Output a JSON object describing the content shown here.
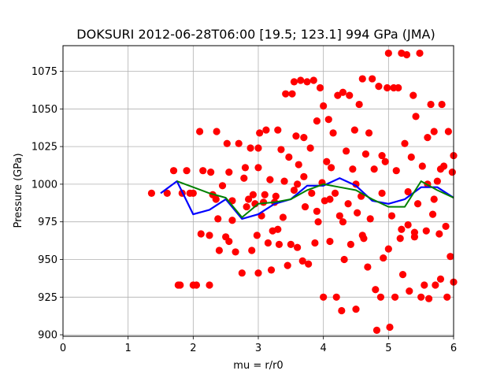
{
  "chart_data": {
    "type": "scatter",
    "title": "DOKSURI 2012-06-28T06:00 [19.5; 123.1] 994 GPa (JMA)",
    "xlabel": "mu = r/r0",
    "ylabel": "Pressure (GPa)",
    "xlim": [
      0,
      6
    ],
    "ylim": [
      899,
      1092
    ],
    "xticks": [
      0,
      1,
      2,
      3,
      4,
      5,
      6
    ],
    "yticks": [
      900,
      925,
      950,
      975,
      1000,
      1025,
      1050,
      1075
    ],
    "grid": true,
    "colors": {
      "points": "#ff0000",
      "blue_line": "#0000ff",
      "green_line": "#008000"
    },
    "point_series": {
      "name": "",
      "points": [
        [
          1.36,
          994
        ],
        [
          1.6,
          994
        ],
        [
          1.7,
          1009
        ],
        [
          1.77,
          933
        ],
        [
          1.8,
          933
        ],
        [
          1.83,
          994
        ],
        [
          1.9,
          1009
        ],
        [
          1.95,
          994
        ],
        [
          2.0,
          994
        ],
        [
          2.0,
          933
        ],
        [
          2.05,
          933
        ],
        [
          2.1,
          1035
        ],
        [
          2.12,
          967
        ],
        [
          2.15,
          1009
        ],
        [
          2.25,
          933
        ],
        [
          2.25,
          966
        ],
        [
          2.27,
          1008
        ],
        [
          2.3,
          993
        ],
        [
          2.35,
          990
        ],
        [
          2.36,
          1035
        ],
        [
          2.38,
          977
        ],
        [
          2.4,
          956
        ],
        [
          2.45,
          999
        ],
        [
          2.5,
          965
        ],
        [
          2.52,
          1027
        ],
        [
          2.55,
          1008
        ],
        [
          2.55,
          962
        ],
        [
          2.6,
          976
        ],
        [
          2.6,
          989
        ],
        [
          2.65,
          955
        ],
        [
          2.7,
          1027
        ],
        [
          2.75,
          941
        ],
        [
          2.78,
          1004
        ],
        [
          2.8,
          1011
        ],
        [
          2.82,
          985
        ],
        [
          2.85,
          990
        ],
        [
          2.88,
          1024
        ],
        [
          2.9,
          956
        ],
        [
          2.92,
          993
        ],
        [
          2.95,
          987
        ],
        [
          2.98,
          966
        ],
        [
          3.0,
          941
        ],
        [
          3.0,
          1011
        ],
        [
          3.0,
          1024
        ],
        [
          3.02,
          1034
        ],
        [
          3.05,
          979
        ],
        [
          3.08,
          988
        ],
        [
          3.1,
          993
        ],
        [
          3.12,
          1036
        ],
        [
          3.15,
          961
        ],
        [
          3.18,
          1003
        ],
        [
          3.2,
          943
        ],
        [
          3.22,
          969
        ],
        [
          3.25,
          988
        ],
        [
          3.27,
          992
        ],
        [
          3.3,
          1036
        ],
        [
          3.32,
          960
        ],
        [
          3.35,
          1023
        ],
        [
          3.38,
          978
        ],
        [
          3.4,
          1002
        ],
        [
          3.42,
          1060
        ],
        [
          3.45,
          946
        ],
        [
          3.47,
          1018
        ],
        [
          3.5,
          960
        ],
        [
          3.52,
          1060
        ],
        [
          3.55,
          1068
        ],
        [
          3.55,
          996
        ],
        [
          3.58,
          1032
        ],
        [
          3.6,
          958
        ],
        [
          3.62,
          1013
        ],
        [
          3.65,
          1069
        ],
        [
          3.68,
          949
        ],
        [
          3.7,
          1031
        ],
        [
          3.72,
          985
        ],
        [
          3.75,
          1068
        ],
        [
          3.77,
          947
        ],
        [
          3.8,
          1024
        ],
        [
          3.82,
          994
        ],
        [
          3.85,
          1069
        ],
        [
          3.87,
          961
        ],
        [
          3.9,
          1042
        ],
        [
          3.92,
          975
        ],
        [
          3.95,
          1064
        ],
        [
          3.98,
          1001
        ],
        [
          4.0,
          925
        ],
        [
          4.0,
          1052
        ],
        [
          4.02,
          989
        ],
        [
          4.05,
          1015
        ],
        [
          4.08,
          1043
        ],
        [
          4.1,
          962
        ],
        [
          4.12,
          1011
        ],
        [
          4.15,
          1034
        ],
        [
          4.18,
          994
        ],
        [
          4.2,
          925
        ],
        [
          4.22,
          1059
        ],
        [
          4.25,
          979
        ],
        [
          4.28,
          916
        ],
        [
          4.3,
          1061
        ],
        [
          4.32,
          950
        ],
        [
          4.35,
          1022
        ],
        [
          4.38,
          987
        ],
        [
          4.4,
          1059
        ],
        [
          4.42,
          960
        ],
        [
          4.45,
          1010
        ],
        [
          4.48,
          1036
        ],
        [
          4.5,
          917
        ],
        [
          4.52,
          981
        ],
        [
          4.55,
          1053
        ],
        [
          4.58,
          992
        ],
        [
          4.6,
          1070
        ],
        [
          4.62,
          964
        ],
        [
          4.65,
          1020
        ],
        [
          4.68,
          945
        ],
        [
          4.7,
          1034
        ],
        [
          4.72,
          977
        ],
        [
          4.75,
          1070
        ],
        [
          4.78,
          1010
        ],
        [
          4.8,
          930
        ],
        [
          4.82,
          903
        ],
        [
          4.85,
          1065
        ],
        [
          4.88,
          925
        ],
        [
          4.9,
          994
        ],
        [
          4.92,
          951
        ],
        [
          4.95,
          1015
        ],
        [
          4.98,
          1064
        ],
        [
          5.0,
          1087
        ],
        [
          5.02,
          905
        ],
        [
          5.05,
          979
        ],
        [
          5.08,
          1064
        ],
        [
          5.1,
          925
        ],
        [
          5.12,
          1009
        ],
        [
          5.15,
          1064
        ],
        [
          5.18,
          964
        ],
        [
          5.2,
          1087
        ],
        [
          5.22,
          940
        ],
        [
          5.25,
          1027
        ],
        [
          5.28,
          1086
        ],
        [
          5.3,
          973
        ],
        [
          5.32,
          929
        ],
        [
          5.35,
          1018
        ],
        [
          5.38,
          1059
        ],
        [
          5.4,
          968
        ],
        [
          5.42,
          1045
        ],
        [
          5.45,
          987
        ],
        [
          5.48,
          1087
        ],
        [
          5.5,
          925
        ],
        [
          5.52,
          1012
        ],
        [
          5.55,
          933
        ],
        [
          5.58,
          969
        ],
        [
          5.6,
          1031
        ],
        [
          5.62,
          924
        ],
        [
          5.65,
          1053
        ],
        [
          5.68,
          980
        ],
        [
          5.7,
          1035
        ],
        [
          5.72,
          933
        ],
        [
          5.75,
          1002
        ],
        [
          5.78,
          967
        ],
        [
          5.8,
          937
        ],
        [
          5.82,
          1053
        ],
        [
          5.85,
          1012
        ],
        [
          5.88,
          972
        ],
        [
          5.9,
          925
        ],
        [
          5.92,
          1035
        ],
        [
          5.95,
          952
        ],
        [
          5.98,
          1008
        ],
        [
          6.0,
          935
        ],
        [
          6.0,
          1019
        ],
        [
          3.6,
          1000
        ],
        [
          3.9,
          982
        ],
        [
          4.3,
          975
        ],
        [
          4.6,
          966
        ],
        [
          5.0,
          957
        ],
        [
          5.2,
          970
        ],
        [
          5.4,
          965
        ],
        [
          5.6,
          1000
        ],
        [
          5.8,
          1010
        ],
        [
          3.3,
          970
        ],
        [
          3.7,
          1005
        ],
        [
          4.1,
          990
        ],
        [
          4.5,
          1000
        ],
        [
          4.9,
          1019
        ],
        [
          5.3,
          995
        ],
        [
          5.7,
          990
        ]
      ]
    },
    "line_series": [
      {
        "name": "",
        "color": "#0000ff",
        "points": [
          [
            1.5,
            994
          ],
          [
            1.75,
            1002
          ],
          [
            2.0,
            980
          ],
          [
            2.25,
            983
          ],
          [
            2.5,
            990
          ],
          [
            2.75,
            977
          ],
          [
            3.0,
            980
          ],
          [
            3.25,
            987
          ],
          [
            3.5,
            990
          ],
          [
            3.75,
            999
          ],
          [
            4.0,
            999
          ],
          [
            4.25,
            1004
          ],
          [
            4.5,
            999
          ],
          [
            4.75,
            989
          ],
          [
            5.0,
            987
          ],
          [
            5.25,
            990
          ],
          [
            5.5,
            998
          ],
          [
            5.75,
            998
          ],
          [
            6.0,
            991
          ]
        ]
      },
      {
        "name": "",
        "color": "#008000",
        "points": [
          [
            1.75,
            1002
          ],
          [
            2.0,
            998
          ],
          [
            2.25,
            994
          ],
          [
            2.5,
            991
          ],
          [
            2.75,
            978
          ],
          [
            3.0,
            987
          ],
          [
            3.25,
            988
          ],
          [
            3.5,
            990
          ],
          [
            3.75,
            996
          ],
          [
            4.0,
            1000
          ],
          [
            4.25,
            998
          ],
          [
            4.5,
            996
          ],
          [
            4.75,
            990
          ],
          [
            5.0,
            985
          ],
          [
            5.25,
            985
          ],
          [
            5.5,
            1002
          ],
          [
            5.75,
            996
          ],
          [
            6.0,
            991
          ]
        ]
      }
    ]
  }
}
